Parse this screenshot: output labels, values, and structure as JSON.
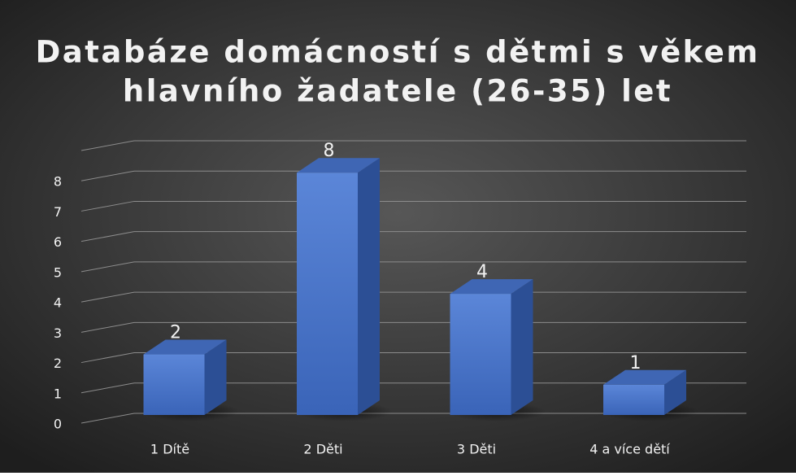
{
  "chart_data": {
    "type": "bar3d",
    "title": [
      "Databáze domácností s dětmi s věkem",
      "hlavního žadatele (26-35) let"
    ],
    "categories": [
      "1 Dítě",
      "2 Děti",
      "3 Děti",
      "4 a více dětí"
    ],
    "values": [
      2,
      8,
      4,
      1
    ],
    "color": "#4472c4",
    "ylim": [
      0,
      9
    ],
    "yticks": [
      0,
      1,
      2,
      3,
      4,
      5,
      6,
      7,
      8
    ],
    "grid": true
  }
}
